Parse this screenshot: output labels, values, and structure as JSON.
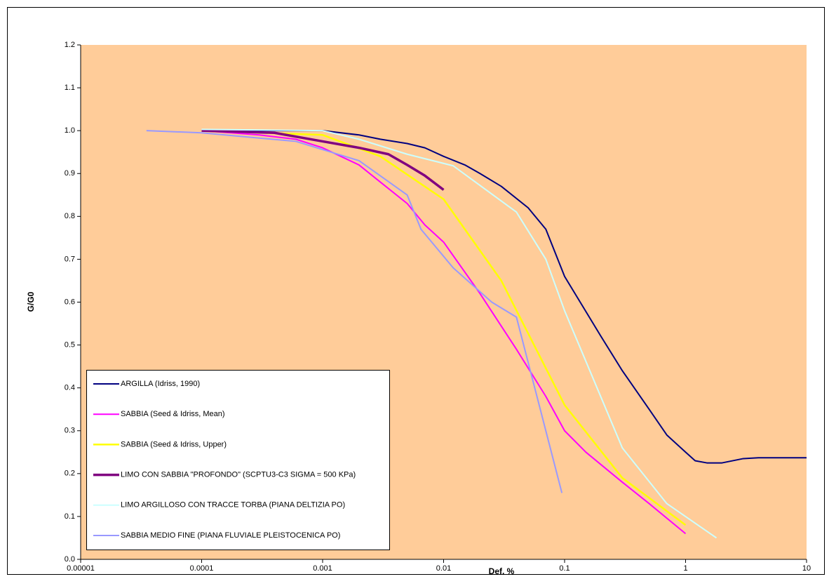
{
  "chart_data": {
    "type": "line",
    "x_label": "Def. %",
    "y_label": "G/G0",
    "xscale": "log",
    "legend": "lower left",
    "background": "#ffcc99",
    "xlim": [
      1e-05,
      10
    ],
    "xticks": [
      1e-05,
      0.0001,
      0.001,
      0.01,
      0.1,
      1,
      10
    ],
    "ylim": [
      0,
      1.2
    ],
    "yticks": [
      {
        "value": 0,
        "label": "0.0"
      },
      0.1,
      0.2,
      0.3,
      0.4,
      0.5,
      0.6,
      0.7,
      0.8,
      0.9,
      {
        "value": 1,
        "label": "1.0"
      },
      1.1,
      1.2
    ],
    "series": [
      {
        "name": "ARGILLA (Idriss, 1990)",
        "color": "#000080",
        "width": 2,
        "x": [
          0.0001,
          0.0003,
          0.001,
          0.002,
          0.003,
          0.005,
          0.007,
          0.01,
          0.015,
          0.02,
          0.03,
          0.05,
          0.07,
          0.1,
          0.2,
          0.3,
          0.5,
          0.7,
          1,
          1.2,
          1.5,
          2,
          3,
          4,
          10
        ],
        "values": [
          1.0,
          1.0,
          1.0,
          0.99,
          0.98,
          0.97,
          0.96,
          0.94,
          0.92,
          0.9,
          0.87,
          0.82,
          0.77,
          0.66,
          0.52,
          0.44,
          0.35,
          0.29,
          0.25,
          0.23,
          0.225,
          0.225,
          0.235,
          0.237,
          0.237
        ]
      },
      {
        "name": "SABBIA (Seed & Idriss, Mean)",
        "color": "#ff00ff",
        "width": 2,
        "x": [
          0.0001,
          0.0003,
          0.0006,
          0.001,
          0.002,
          0.003,
          0.005,
          0.007,
          0.01,
          0.02,
          0.04,
          0.07,
          0.1,
          0.15,
          0.3,
          0.5,
          1
        ],
        "values": [
          1.0,
          0.99,
          0.98,
          0.96,
          0.92,
          0.88,
          0.83,
          0.78,
          0.74,
          0.62,
          0.49,
          0.38,
          0.3,
          0.25,
          0.18,
          0.13,
          0.06
        ]
      },
      {
        "name": "SABBIA (Seed & Idriss, Upper)",
        "color": "#ffff00",
        "width": 2.5,
        "x": [
          0.0001,
          0.001,
          0.003,
          0.01,
          0.03,
          0.1,
          0.3,
          1
        ],
        "values": [
          1.0,
          0.99,
          0.94,
          0.84,
          0.65,
          0.36,
          0.19,
          0.08
        ]
      },
      {
        "name": "LIMO CON SABBIA \"PROFONDO\" (SCPTU3-C3 SIGMA = 500 KPa)",
        "color": "#800080",
        "width": 3.5,
        "x": [
          0.0001,
          0.0004,
          0.001,
          0.002,
          0.0035,
          0.005,
          0.007,
          0.01
        ],
        "values": [
          1.0,
          0.995,
          0.975,
          0.96,
          0.945,
          0.92,
          0.895,
          0.862
        ]
      },
      {
        "name": "LIMO ARGILLOSO CON TRACCE TORBA (PIANA DELTIZIA PO)",
        "color": "#ccffff",
        "width": 2,
        "x": [
          0.0001,
          0.001,
          0.002,
          0.005,
          0.012,
          0.04,
          0.07,
          0.1,
          0.3,
          0.7,
          1.8
        ],
        "values": [
          1.003,
          1.0,
          0.98,
          0.945,
          0.918,
          0.81,
          0.7,
          0.58,
          0.26,
          0.13,
          0.05
        ]
      },
      {
        "name": "SABBIA MEDIO FINE (PIANA FLUVIALE PLEISTOCENICA PO)",
        "color": "#9999ff",
        "width": 2,
        "x": [
          3.5e-05,
          0.0001,
          0.0006,
          0.002,
          0.005,
          0.0065,
          0.012,
          0.025,
          0.04,
          0.095
        ],
        "values": [
          1.0,
          0.995,
          0.975,
          0.93,
          0.85,
          0.77,
          0.68,
          0.6,
          0.565,
          0.155
        ]
      }
    ]
  }
}
